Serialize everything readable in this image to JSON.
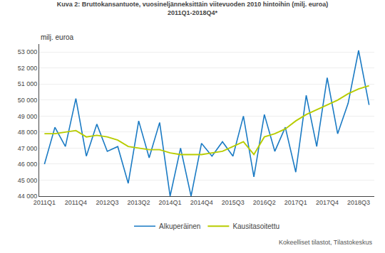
{
  "chart_data": {
    "type": "line",
    "title": "Kuva 2: Bruttokansantuote, vuosineljänneksittäin viitevuoden 2010 hintoihin (milj. euroa)",
    "subtitle": "2011Q1-2018Q4*",
    "ylabel": "milj. euroa",
    "annotations": [
      "Kokeelliset tilastot, Tilastokeskus"
    ],
    "categories": [
      "2011Q1",
      null,
      null,
      "2011Q4",
      null,
      null,
      "2012Q3",
      null,
      null,
      "2013Q2",
      null,
      null,
      "2014Q1",
      null,
      null,
      "2014Q4",
      null,
      null,
      "2015Q3",
      null,
      null,
      "2016Q2",
      null,
      null,
      "2017Q1",
      null,
      null,
      "2017Q4",
      null,
      null,
      "2018Q3",
      null
    ],
    "series": [
      {
        "name": "Alkuperäinen",
        "color": "#1b7bc4",
        "values": [
          46000,
          48300,
          47100,
          50100,
          46500,
          48500,
          46800,
          47100,
          44800,
          48700,
          46400,
          48600,
          44000,
          47000,
          44000,
          47300,
          46500,
          47400,
          46500,
          49000,
          45200,
          49100,
          46800,
          48300,
          45500,
          50300,
          47100,
          51400,
          47900,
          49800,
          53100,
          49700
        ]
      },
      {
        "name": "Kausitasoitettu",
        "color": "#b8cc00",
        "values": [
          47900,
          47900,
          48000,
          48100,
          47700,
          47800,
          47700,
          47500,
          47100,
          47000,
          46900,
          46900,
          46700,
          46600,
          46600,
          46600,
          46700,
          46800,
          47100,
          47400,
          46600,
          47700,
          47900,
          48200,
          48700,
          49100,
          49400,
          49700,
          50000,
          50400,
          50700,
          50900
        ]
      }
    ],
    "ylim": [
      44000,
      53500
    ],
    "yticks": [
      {
        "value": 44000,
        "label": "44 000"
      },
      {
        "value": 45000,
        "label": "45 000"
      },
      {
        "value": 46000,
        "label": "46 000"
      },
      {
        "value": 47000,
        "label": "47 000"
      },
      {
        "value": 48000,
        "label": "48 000"
      },
      {
        "value": 49000,
        "label": "49 000"
      },
      {
        "value": 50000,
        "label": "50 000"
      },
      {
        "value": 51000,
        "label": "51 000"
      },
      {
        "value": 52000,
        "label": "52 000"
      },
      {
        "value": 53000,
        "label": "53 000"
      }
    ],
    "grid": true,
    "legend": "bottom"
  }
}
